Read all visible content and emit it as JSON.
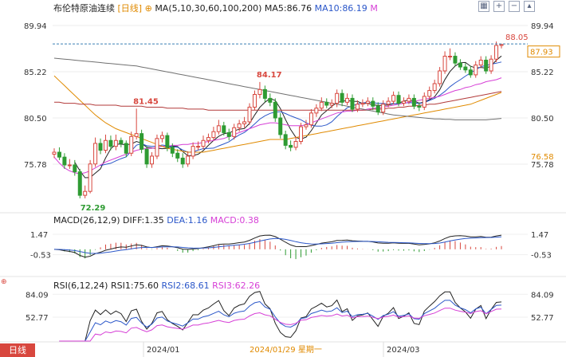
{
  "header": {
    "title": "布伦特原油连续",
    "period": "[日线]",
    "toggle_icon": "circle-plus-icon",
    "ma_label": "MA(5,10,30,60,100,200)",
    "ma5": "MA5:86.76",
    "ma10": "MA10:86.19",
    "more": "M",
    "colors": {
      "ma5": "#222222",
      "ma10": "#2b57c9",
      "more": "#d63fd6",
      "period": "#e08a00"
    }
  },
  "toolbar_icons": [
    "grid-icon",
    "zoom-in-icon",
    "zoom-out-icon",
    "collapse-icon"
  ],
  "footer": {
    "badge": "日线",
    "date_left": "2024/01",
    "date_center": "2024/01/29 星期一",
    "date_right": "2024/03"
  },
  "chart_data": [
    {
      "type": "candlestick",
      "name": "price",
      "ylim": [
        70.9,
        91.4
      ],
      "y_ticks": [
        89.94,
        85.22,
        80.5,
        75.78
      ],
      "y_tick_labels": [
        "89.94",
        "85.22",
        "80.50",
        "75.78"
      ],
      "right_tags": [
        {
          "text": "88.05",
          "value": 88.05,
          "color": "#d8473e",
          "style": "dashed-line"
        },
        {
          "text": "87.93",
          "value": 87.93,
          "color": "#e08a00",
          "style": "box"
        },
        {
          "text": "76.58",
          "value": 76.58,
          "color": "#e08a00",
          "style": "text"
        }
      ],
      "annotations": [
        {
          "text": "84.17",
          "value": 84.17,
          "index": 40,
          "color": "#d8473e"
        },
        {
          "text": "81.45",
          "value": 81.45,
          "index": 16,
          "color": "#d8473e"
        },
        {
          "text": "72.29",
          "value": 72.29,
          "index": 6,
          "color": "#2e9b32"
        }
      ],
      "up_color": "#d8473e",
      "down_color": "#2e9b32",
      "open": [
        76.8,
        77.0,
        76.5,
        75.7,
        75.7,
        75.0,
        72.6,
        73.0,
        75.8,
        77.9,
        77.2,
        78.2,
        77.6,
        78.2,
        77.9,
        76.9,
        78.6,
        78.9,
        77.3,
        75.8,
        76.6,
        78.4,
        78.7,
        77.5,
        76.9,
        76.4,
        75.8,
        76.6,
        77.6,
        77.6,
        78.2,
        78.5,
        79.1,
        79.7,
        79.0,
        78.6,
        79.5,
        79.9,
        80.1,
        81.6,
        82.9,
        83.4,
        82.5,
        82.1,
        80.5,
        78.8,
        77.7,
        77.5,
        78.1,
        79.6,
        79.8,
        81.0,
        81.5,
        82.1,
        81.8,
        82.0,
        83.0,
        82.1,
        82.5,
        81.4,
        81.9,
        82.0,
        82.2,
        81.7,
        81.1,
        81.9,
        82.2,
        82.8,
        82.0,
        82.2,
        82.5,
        81.7,
        81.6,
        82.7,
        83.3,
        84.0,
        85.3,
        86.8,
        86.8,
        86.1,
        85.7,
        85.4,
        84.9,
        85.9,
        86.4,
        85.3,
        86.5,
        87.9
      ],
      "close": [
        77.0,
        76.5,
        75.7,
        75.7,
        75.0,
        72.6,
        73.0,
        75.8,
        77.9,
        77.2,
        78.2,
        77.6,
        78.2,
        77.9,
        76.9,
        78.6,
        78.9,
        77.3,
        75.8,
        76.6,
        78.4,
        78.7,
        77.5,
        76.9,
        76.4,
        75.8,
        76.6,
        77.6,
        77.6,
        78.2,
        78.5,
        79.1,
        79.7,
        79.0,
        78.6,
        79.5,
        79.9,
        80.1,
        81.6,
        82.9,
        83.4,
        82.5,
        82.1,
        80.5,
        78.8,
        77.7,
        77.5,
        78.1,
        79.6,
        79.8,
        81.0,
        81.5,
        82.1,
        81.8,
        82.0,
        83.0,
        82.1,
        82.5,
        81.4,
        81.9,
        82.0,
        82.2,
        81.7,
        81.1,
        81.9,
        82.2,
        82.8,
        82.0,
        82.2,
        82.5,
        81.7,
        81.6,
        82.7,
        83.3,
        84.0,
        85.3,
        86.8,
        86.8,
        86.1,
        85.7,
        85.4,
        84.9,
        85.9,
        86.4,
        85.3,
        86.5,
        87.9,
        88.0
      ],
      "high": [
        77.4,
        77.5,
        76.9,
        76.3,
        76.2,
        75.3,
        73.6,
        76.2,
        78.5,
        78.4,
        78.8,
        78.7,
        78.8,
        78.5,
        78.2,
        79.1,
        81.45,
        79.3,
        77.6,
        77.0,
        78.8,
        79.1,
        79.0,
        77.9,
        77.3,
        76.9,
        77.1,
        78.0,
        78.1,
        78.7,
        78.9,
        79.6,
        80.3,
        80.1,
        79.4,
        79.9,
        80.3,
        80.6,
        82.0,
        83.3,
        84.17,
        83.8,
        83.0,
        82.5,
        81.0,
        79.2,
        78.2,
        78.6,
        80.0,
        80.3,
        81.4,
        81.9,
        82.6,
        82.5,
        82.4,
        83.4,
        83.4,
        83.0,
        82.9,
        82.3,
        82.4,
        82.6,
        82.6,
        82.1,
        82.3,
        82.6,
        83.2,
        83.2,
        82.6,
        82.9,
        82.9,
        82.1,
        83.1,
        83.7,
        84.4,
        85.7,
        87.3,
        87.6,
        87.2,
        86.5,
        86.1,
        85.8,
        86.3,
        86.8,
        86.8,
        86.9,
        88.3,
        88.05
      ],
      "low": [
        76.4,
        76.2,
        75.3,
        75.3,
        74.6,
        72.29,
        72.29,
        72.8,
        75.5,
        76.8,
        76.9,
        77.2,
        77.2,
        77.5,
        76.5,
        76.6,
        78.3,
        76.9,
        75.4,
        75.4,
        76.3,
        78.0,
        77.1,
        76.5,
        76.0,
        75.4,
        75.5,
        76.3,
        77.2,
        77.3,
        77.9,
        78.2,
        78.8,
        78.7,
        78.2,
        78.3,
        79.1,
        79.5,
        79.8,
        81.3,
        82.5,
        82.1,
        81.7,
        80.1,
        78.4,
        77.3,
        77.1,
        77.2,
        77.8,
        79.3,
        79.5,
        80.6,
        81.2,
        81.5,
        81.5,
        81.6,
        81.7,
        81.8,
        81.1,
        81.1,
        81.6,
        81.7,
        81.3,
        80.8,
        80.8,
        81.6,
        81.9,
        81.7,
        81.7,
        81.9,
        81.4,
        81.2,
        81.3,
        82.4,
        83.0,
        83.7,
        85.0,
        86.4,
        85.8,
        85.4,
        85.1,
        84.6,
        84.6,
        85.6,
        85.0,
        85.0,
        86.2,
        87.6
      ],
      "series": [
        {
          "name": "MA5",
          "color": "#222222"
        },
        {
          "name": "MA10",
          "color": "#2b57c9"
        },
        {
          "name": "MA30",
          "color": "#d63fd6"
        },
        {
          "name": "MA60",
          "color": "#e08a00"
        },
        {
          "name": "MA100",
          "color": "#b23a3a"
        },
        {
          "name": "MA200",
          "color": "#707070"
        }
      ],
      "ma_extra": {
        "MA30": [
          76.5,
          75.9,
          75.4,
          75.1,
          74.9,
          74.8,
          74.9,
          75.1,
          75.4,
          75.7,
          76.0,
          76.2,
          76.4,
          76.6,
          76.8,
          77.0,
          77.2,
          77.3,
          77.4,
          77.4,
          77.5,
          77.6,
          77.6,
          77.7,
          77.7,
          77.8,
          77.8,
          77.9,
          77.9,
          78.0,
          78.1,
          78.2,
          78.3,
          78.4,
          78.6,
          78.8,
          79.0,
          79.2,
          79.4,
          79.6,
          79.8,
          79.9,
          80.0,
          80.0,
          79.9,
          79.8,
          79.7,
          79.7,
          79.7,
          79.8,
          80.0,
          80.2,
          80.4,
          80.6,
          80.8,
          81.0,
          81.1,
          81.2,
          81.2,
          81.3,
          81.3,
          81.4,
          81.5,
          81.5,
          81.6,
          81.7,
          81.8,
          81.9,
          82.0,
          82.1,
          82.2,
          82.3,
          82.4,
          82.5,
          82.6,
          82.7,
          82.9,
          83.1,
          83.3,
          83.4,
          83.6,
          83.7,
          83.9,
          84.0,
          84.2,
          84.3,
          84.4,
          84.6
        ],
        "MA60": [
          84.8,
          84.3,
          83.8,
          83.3,
          82.8,
          82.3,
          81.8,
          81.3,
          80.8,
          80.4,
          80.0,
          79.7,
          79.4,
          79.2,
          79.0,
          78.8,
          78.6,
          78.4,
          78.2,
          78.0,
          77.8,
          77.6,
          77.4,
          77.3,
          77.2,
          77.1,
          77.0,
          77.0,
          77.0,
          77.0,
          77.1,
          77.2,
          77.3,
          77.4,
          77.5,
          77.6,
          77.7,
          77.8,
          77.9,
          78.0,
          78.1,
          78.2,
          78.3,
          78.3,
          78.3,
          78.3,
          78.4,
          78.5,
          78.6,
          78.7,
          78.8,
          78.9,
          79.0,
          79.1,
          79.2,
          79.3,
          79.4,
          79.5,
          79.6,
          79.7,
          79.8,
          79.9,
          80.0,
          80.1,
          80.2,
          80.3,
          80.4,
          80.5,
          80.6,
          80.7,
          80.8,
          80.9,
          81.0,
          81.1,
          81.2,
          81.3,
          81.4,
          81.5,
          81.6,
          81.7,
          81.8,
          81.9,
          82.1,
          82.3,
          82.5,
          82.7,
          82.9,
          83.1
        ],
        "MA100": [
          82.1,
          82.1,
          82.0,
          82.0,
          82.0,
          81.9,
          81.9,
          81.9,
          81.8,
          81.8,
          81.8,
          81.8,
          81.8,
          81.7,
          81.7,
          81.7,
          81.7,
          81.7,
          81.6,
          81.6,
          81.6,
          81.6,
          81.5,
          81.5,
          81.5,
          81.5,
          81.4,
          81.4,
          81.4,
          81.4,
          81.3,
          81.3,
          81.3,
          81.3,
          81.3,
          81.3,
          81.3,
          81.3,
          81.3,
          81.3,
          81.3,
          81.3,
          81.3,
          81.3,
          81.3,
          81.3,
          81.3,
          81.3,
          81.3,
          81.3,
          81.3,
          81.3,
          81.3,
          81.3,
          81.3,
          81.3,
          81.3,
          81.3,
          81.3,
          81.3,
          81.3,
          81.3,
          81.4,
          81.4,
          81.4,
          81.5,
          81.5,
          81.6,
          81.6,
          81.7,
          81.7,
          81.8,
          81.8,
          81.9,
          81.9,
          82.0,
          82.1,
          82.2,
          82.3,
          82.4,
          82.5,
          82.6,
          82.7,
          82.8,
          82.9,
          83.0,
          83.1,
          83.2
        ],
        "MA200": [
          86.6,
          86.55,
          86.5,
          86.45,
          86.4,
          86.35,
          86.3,
          86.25,
          86.2,
          86.15,
          86.1,
          86.05,
          86.0,
          85.95,
          85.9,
          85.85,
          85.8,
          85.7,
          85.6,
          85.5,
          85.4,
          85.3,
          85.2,
          85.1,
          85.0,
          84.9,
          84.8,
          84.7,
          84.6,
          84.5,
          84.4,
          84.3,
          84.2,
          84.1,
          84.0,
          83.9,
          83.8,
          83.7,
          83.6,
          83.5,
          83.4,
          83.3,
          83.2,
          83.1,
          83.0,
          82.9,
          82.8,
          82.7,
          82.6,
          82.5,
          82.4,
          82.3,
          82.2,
          82.1,
          82.0,
          81.9,
          81.8,
          81.7,
          81.6,
          81.5,
          81.4,
          81.3,
          81.2,
          81.1,
          81.0,
          80.9,
          80.8,
          80.75,
          80.7,
          80.65,
          80.6,
          80.55,
          80.5,
          80.45,
          80.4,
          80.4,
          80.35,
          80.35,
          80.3,
          80.3,
          80.3,
          80.3,
          80.3,
          80.3,
          80.3,
          80.35,
          80.4,
          80.45
        ]
      }
    },
    {
      "type": "histogram-line",
      "name": "MACD",
      "label": "MACD(26,12,9)",
      "diff_label": "DIFF:1.35",
      "dea_label": "DEA:1.16",
      "macd_label": "MACD:0.38",
      "ylim": [
        -1.8,
        2.4
      ],
      "y_ticks": [
        1.47,
        -0.53
      ],
      "y_tick_labels": [
        "1.47",
        "-0.53"
      ],
      "diff_color": "#222222",
      "dea_color": "#2b57c9",
      "hist_up_color": "#d8473e",
      "hist_down_color": "#2e9b32"
    },
    {
      "type": "line",
      "name": "RSI",
      "label": "RSI(6,12,24)",
      "rsi1_label": "RSI1:75.60",
      "rsi2_label": "RSI2:68.61",
      "rsi3_label": "RSI3:62.26",
      "ylim": [
        20,
        92
      ],
      "y_ticks": [
        84.09,
        52.77
      ],
      "y_tick_labels": [
        "84.09",
        "52.77"
      ],
      "colors": [
        "#222222",
        "#2b57c9",
        "#d63fd6"
      ]
    }
  ]
}
